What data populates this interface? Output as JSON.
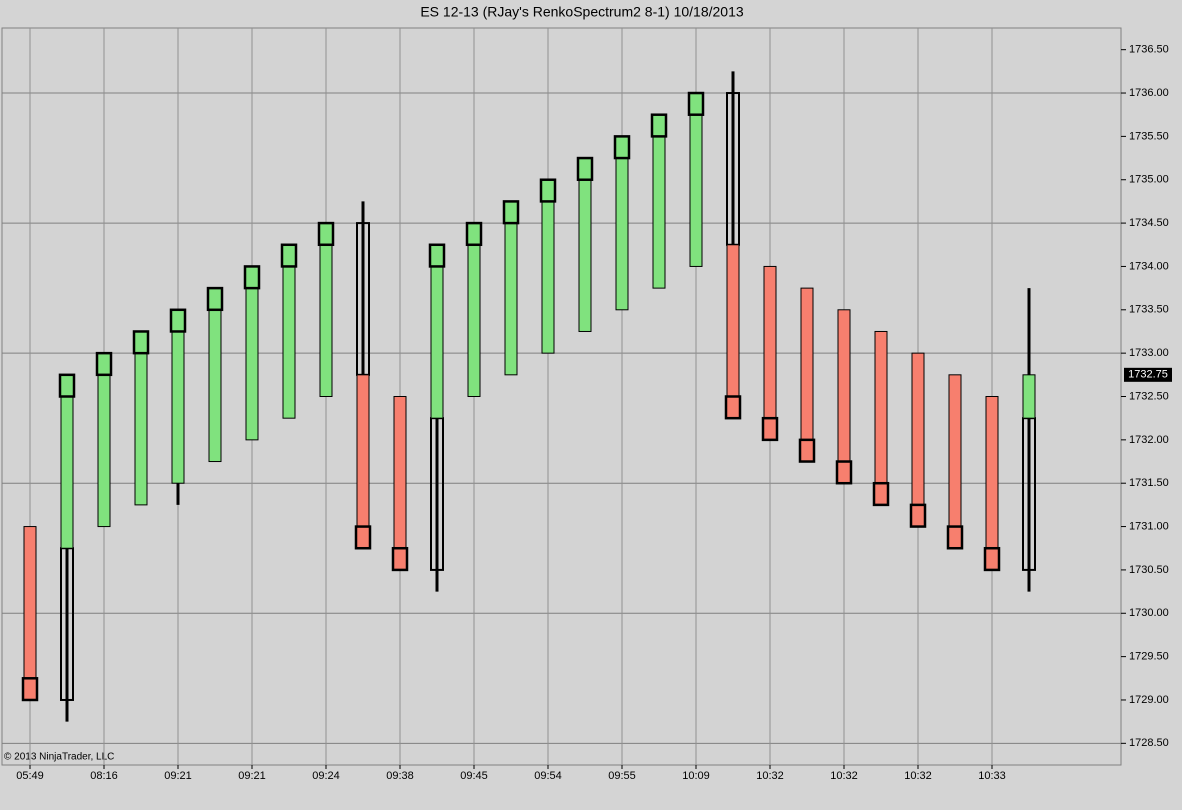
{
  "chart_data": {
    "type": "renko",
    "title": "ES 12-13 (RJay's RenkoSpectrum2  8-1)  10/18/2013",
    "copyright": "© 2013 NinjaTrader, LLC",
    "categories": [
      "05:49",
      null,
      "08:16",
      null,
      "09:21",
      null,
      "09:21",
      null,
      "09:24",
      null,
      "09:38",
      null,
      "09:45",
      null,
      "09:54",
      null,
      "09:55",
      null,
      "10:09",
      null,
      "10:32",
      null,
      "10:32",
      null,
      "10:32",
      null,
      "10:33",
      null
    ],
    "open": [
      1731.0,
      1729.0,
      1731.0,
      1731.25,
      1731.5,
      1731.75,
      1732.0,
      1732.25,
      1732.5,
      1734.5,
      1732.5,
      1730.5,
      1732.5,
      1732.75,
      1733.0,
      1733.25,
      1733.5,
      1733.75,
      1734.0,
      1736.0,
      1734.0,
      1733.75,
      1733.5,
      1733.25,
      1733.0,
      1732.75,
      1732.5,
      1730.5
    ],
    "body_from": [
      1731.0,
      1730.75,
      1731.0,
      1731.25,
      1731.5,
      1731.75,
      1732.0,
      1732.25,
      1732.5,
      1732.75,
      1732.5,
      1732.25,
      1732.5,
      1732.75,
      1733.0,
      1733.25,
      1733.5,
      1733.75,
      1734.0,
      1734.25,
      1734.0,
      1733.75,
      1733.5,
      1733.25,
      1733.0,
      1732.75,
      1732.5,
      1732.25
    ],
    "close": [
      1729.0,
      1732.75,
      1733.0,
      1733.25,
      1733.5,
      1733.75,
      1734.0,
      1734.25,
      1734.5,
      1730.75,
      1730.5,
      1734.25,
      1734.5,
      1734.75,
      1735.0,
      1735.25,
      1735.5,
      1735.75,
      1736.0,
      1732.25,
      1732.0,
      1731.75,
      1731.5,
      1731.25,
      1731.0,
      1730.75,
      1730.5,
      1732.75
    ],
    "high": [
      1731.0,
      1732.75,
      1733.0,
      1733.25,
      1733.5,
      1733.75,
      1734.0,
      1734.25,
      1734.5,
      1734.75,
      1732.5,
      1734.25,
      1734.5,
      1734.75,
      1735.0,
      1735.25,
      1735.5,
      1735.75,
      1736.0,
      1736.25,
      1734.0,
      1733.75,
      1733.5,
      1733.25,
      1733.0,
      1732.75,
      1732.5,
      1733.75
    ],
    "low": [
      1729.0,
      1728.75,
      1731.0,
      1731.25,
      1731.25,
      1731.75,
      1732.0,
      1732.25,
      1732.5,
      1730.75,
      1730.5,
      1730.25,
      1732.5,
      1732.75,
      1733.0,
      1733.25,
      1733.5,
      1733.75,
      1734.0,
      1732.25,
      1732.0,
      1731.75,
      1731.5,
      1731.25,
      1731.0,
      1730.75,
      1730.5,
      1730.25
    ],
    "up_color": "#80e27e",
    "down_color": "#f77f6e",
    "last_price": 1732.75,
    "ylim": [
      1728.25,
      1736.75
    ],
    "yticks": [
      {
        "value": 1728.5,
        "label": "1728.50"
      },
      {
        "value": 1729,
        "label": "1729.00"
      },
      {
        "value": 1729.5,
        "label": "1729.50"
      },
      {
        "value": 1730,
        "label": "1730.00"
      },
      {
        "value": 1730.5,
        "label": "1730.50"
      },
      {
        "value": 1731,
        "label": "1731.00"
      },
      {
        "value": 1731.5,
        "label": "1731.50"
      },
      {
        "value": 1732,
        "label": "1732.00"
      },
      {
        "value": 1732.5,
        "label": "1732.50"
      },
      {
        "value": 1733,
        "label": "1733.00"
      },
      {
        "value": 1733.5,
        "label": "1733.50"
      },
      {
        "value": 1734,
        "label": "1734.00"
      },
      {
        "value": 1734.5,
        "label": "1734.50"
      },
      {
        "value": 1735,
        "label": "1735.00"
      },
      {
        "value": 1735.5,
        "label": "1735.50"
      },
      {
        "value": 1736,
        "label": "1736.00"
      },
      {
        "value": 1736.5,
        "label": "1736.50"
      }
    ],
    "grid": true
  }
}
